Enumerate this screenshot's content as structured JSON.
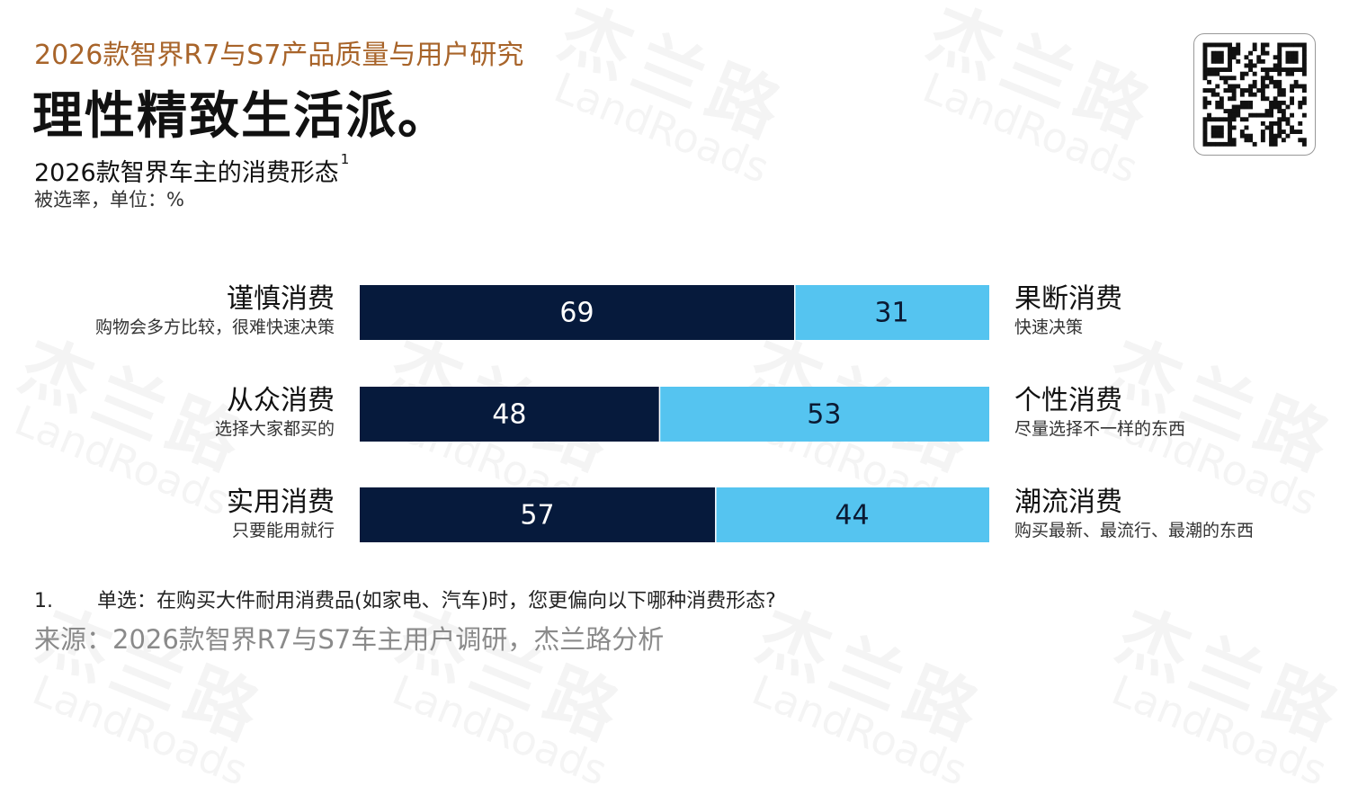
{
  "header": {
    "supertitle": "2026款智界R7与S7产品质量与用户研究",
    "headline": "理性精致生活派。",
    "chart_title": "2026款智界车主的消费形态",
    "chart_title_sup": "1",
    "unit": "被选率，单位：%"
  },
  "watermark": {
    "cn": "杰兰路",
    "en": "LandRoads"
  },
  "colors": {
    "dark": "#061a3c",
    "light": "#55c4f0",
    "accent": "#a8642a"
  },
  "chart_data": {
    "type": "bar",
    "stacked": true,
    "orientation": "horizontal",
    "rows": [
      {
        "left_label": "谨慎消费",
        "left_sub": "购物会多方比较，很难快速决策",
        "left_value": 69,
        "right_value": 31,
        "right_label": "果断消费",
        "right_sub": "快速决策"
      },
      {
        "left_label": "从众消费",
        "left_sub": "选择大家都买的",
        "left_value": 48,
        "right_value": 53,
        "right_label": "个性消费",
        "right_sub": "尽量选择不一样的东西"
      },
      {
        "left_label": "实用消费",
        "left_sub": "只要能用就行",
        "left_value": 57,
        "right_value": 44,
        "right_label": "潮流消费",
        "right_sub": "购买最新、最流行、最潮的东西"
      }
    ]
  },
  "footnote": {
    "number": "1.",
    "text": "单选：在购买大件耐用消费品(如家电、汽车)时，您更偏向以下哪种消费形态?"
  },
  "source": "来源：2026款智界R7与S7车主用户调研，杰兰路分析"
}
